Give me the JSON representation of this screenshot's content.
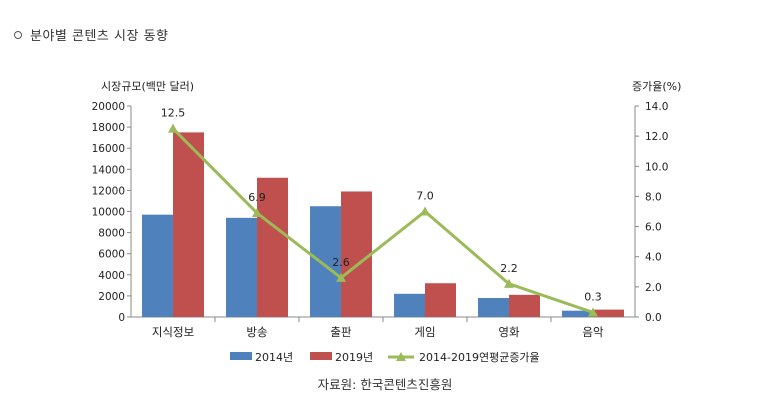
{
  "page": {
    "title": "분야별 콘텐츠 시장 동향"
  },
  "chart_data": {
    "type": "bar+line",
    "categories": [
      "지식정보",
      "방송",
      "출판",
      "게임",
      "영화",
      "음악"
    ],
    "series": [
      {
        "name": "2014년",
        "type": "bar",
        "axis": "left",
        "color": "#4f81bd",
        "values": [
          9700,
          9400,
          10500,
          2200,
          1800,
          600
        ]
      },
      {
        "name": "2019년",
        "type": "bar",
        "axis": "left",
        "color": "#c0504d",
        "values": [
          17500,
          13200,
          11900,
          3200,
          2100,
          700
        ]
      },
      {
        "name": "2014-2019연평균증가율",
        "type": "line",
        "axis": "right",
        "color": "#9bbb59",
        "values": [
          12.5,
          6.9,
          2.6,
          7.0,
          2.2,
          0.3
        ],
        "labels": [
          "12.5",
          "6.9",
          "2.6",
          "7.0",
          "2.2",
          "0.3"
        ]
      }
    ],
    "left_axis": {
      "label": "시장규모(백만 달러)",
      "min": 0,
      "max": 20000,
      "step": 2000,
      "ticks": [
        "0",
        "2000",
        "4000",
        "6000",
        "8000",
        "10000",
        "12000",
        "14000",
        "16000",
        "18000",
        "20000"
      ]
    },
    "right_axis": {
      "label": "증가율(%)",
      "min": 0,
      "max": 14,
      "step": 2,
      "ticks": [
        "0.0",
        "2.0",
        "4.0",
        "6.0",
        "8.0",
        "10.0",
        "12.0",
        "14.0"
      ]
    },
    "legend_position": "bottom",
    "source": "자료원: 한국콘텐츠진흥원"
  }
}
